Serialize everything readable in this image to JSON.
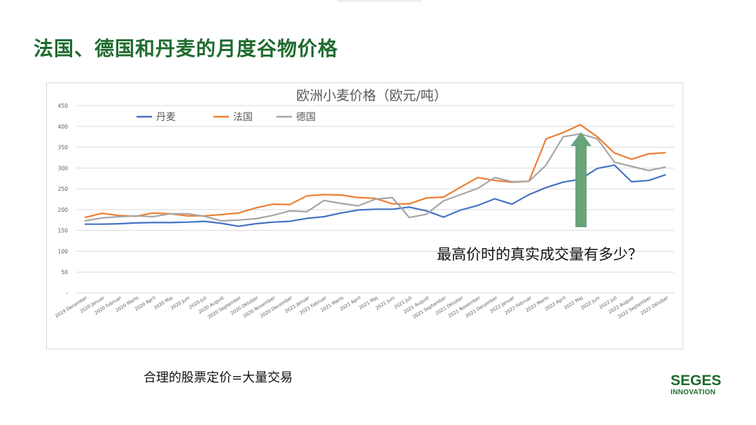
{
  "slide": {
    "title": "法国、德国和丹麦的月度谷物价格",
    "annotation": "最高价时的真实成交量有多少？",
    "caption": "合理的股票定价=大量交易",
    "logo_main": "SEGES",
    "logo_sub": "INNOVATION"
  },
  "chart_data": {
    "type": "line",
    "title": "欧洲小麦价格（欧元/吨）",
    "legend_position": "top-left",
    "grid": true,
    "ylim": [
      0,
      450
    ],
    "yticks": [
      0,
      50,
      100,
      150,
      200,
      250,
      300,
      350,
      400,
      450
    ],
    "ytick_labels": [
      "-",
      "50",
      "100",
      "150",
      "200",
      "250",
      "300",
      "350",
      "400",
      "450"
    ],
    "categories": [
      "2019 December",
      "2020 Januar",
      "2020 Februar",
      "2020 Marts",
      "2020 April",
      "2020 Maj",
      "2020 Juni",
      "2020 Juli",
      "2020 August",
      "2020 September",
      "2020 Oktober",
      "2020 November",
      "2020 December",
      "2021 Januar",
      "2021 Februar",
      "2021 Marts",
      "2021 April",
      "2021 Maj",
      "2021 Juni",
      "2021 Juli",
      "2021 August",
      "2021 September",
      "2021 Oktober",
      "2021 November",
      "2021 December",
      "2022 Januar",
      "2022 Februar",
      "2022 Marts",
      "2022 April",
      "2022 Maj",
      "2022 Juni",
      "2022 Juli",
      "2022 August",
      "2022 September",
      "2022 Oktober"
    ],
    "series": [
      {
        "name": "丹麦",
        "color": "#4472c4",
        "values": [
          165,
          165,
          166,
          168,
          169,
          169,
          170,
          172,
          167,
          160,
          166,
          170,
          172,
          179,
          183,
          192,
          199,
          201,
          201,
          206,
          197,
          182,
          199,
          210,
          226,
          213,
          236,
          253,
          266,
          273,
          299,
          307,
          267,
          270,
          284
        ]
      },
      {
        "name": "法国",
        "color": "#ed7d31",
        "values": [
          181,
          191,
          186,
          184,
          192,
          190,
          185,
          185,
          188,
          192,
          204,
          213,
          212,
          233,
          236,
          235,
          229,
          227,
          214,
          214,
          228,
          230,
          254,
          277,
          270,
          266,
          268,
          370,
          385,
          404,
          375,
          336,
          321,
          334,
          337
        ]
      },
      {
        "name": "德国",
        "color": "#a5a5a5",
        "values": [
          173,
          180,
          183,
          185,
          183,
          190,
          190,
          184,
          173,
          175,
          178,
          186,
          197,
          195,
          222,
          215,
          209,
          225,
          229,
          181,
          189,
          221,
          236,
          251,
          277,
          267,
          268,
          307,
          375,
          382,
          370,
          314,
          304,
          294,
          302
        ]
      }
    ],
    "arrow_color": "#6aa37a"
  }
}
